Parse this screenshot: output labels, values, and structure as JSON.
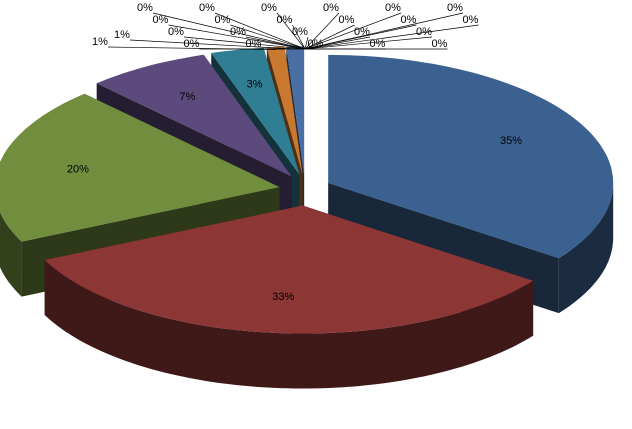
{
  "chart_data": {
    "type": "pie",
    "values": [
      35,
      33,
      20,
      7,
      3,
      1,
      1,
      0,
      0,
      0,
      0,
      0,
      0,
      0,
      0,
      0,
      0,
      0,
      0,
      0,
      0,
      0,
      0,
      0,
      0,
      0,
      0,
      0,
      0
    ],
    "value_labels": [
      "35%",
      "33%",
      "20%",
      "7%",
      "3%",
      "1%",
      "1%",
      "0%",
      "0%",
      "0%",
      "0%",
      "0%",
      "0%",
      "0%",
      "0%",
      "0%",
      "0%",
      "0%",
      "0%",
      "0%",
      "0%",
      "0%",
      "0%",
      "0%",
      "0%",
      "0%",
      "0%",
      "0%",
      "0%"
    ],
    "colors": [
      "#3b6190",
      "#8c3636",
      "#718e3e",
      "#5c4a7d",
      "#2f7e94",
      "#c8782f",
      "#4a6fa5",
      "#a6a6a6",
      "#9bb7d9",
      "#d99694",
      "#c3d69b",
      "#b3a2c7",
      "#92cddc",
      "#fac090",
      "#4f81bd",
      "#c0504d",
      "#9bbb59",
      "#8064a2",
      "#4bacc6",
      "#f79646",
      "#2c4d75",
      "#772c2a",
      "#5f7530",
      "#4d3b62",
      "#276a7c",
      "#b65708",
      "#729aca",
      "#cd7371",
      "#afc97a"
    ]
  }
}
